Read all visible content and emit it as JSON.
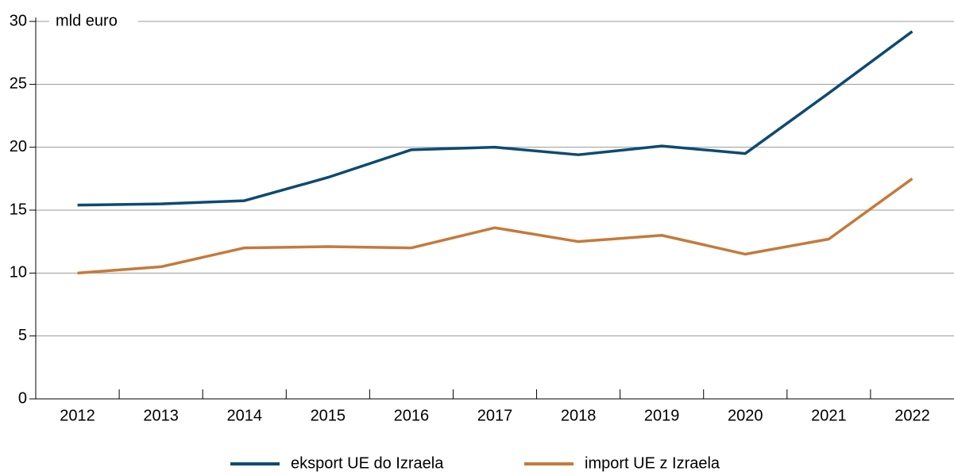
{
  "chart_data": {
    "type": "line",
    "y_label": "mld euro",
    "categories": [
      "2012",
      "2013",
      "2014",
      "2015",
      "2016",
      "2017",
      "2018",
      "2019",
      "2020",
      "2021",
      "2022"
    ],
    "series": [
      {
        "name": "eksport UE do Izraela",
        "color": "#0d4a72",
        "values": [
          15.4,
          15.5,
          15.75,
          17.6,
          19.8,
          20.0,
          19.4,
          20.1,
          19.5,
          24.3,
          29.2
        ]
      },
      {
        "name": "import UE z Izraela",
        "color": "#c57a3a",
        "values": [
          10.0,
          10.5,
          12.0,
          12.1,
          12.0,
          13.6,
          12.5,
          13.0,
          11.5,
          12.7,
          17.5
        ]
      }
    ],
    "ylim": [
      0,
      30
    ],
    "yticks": [
      0,
      5,
      10,
      15,
      20,
      25,
      30
    ],
    "grid": true
  }
}
